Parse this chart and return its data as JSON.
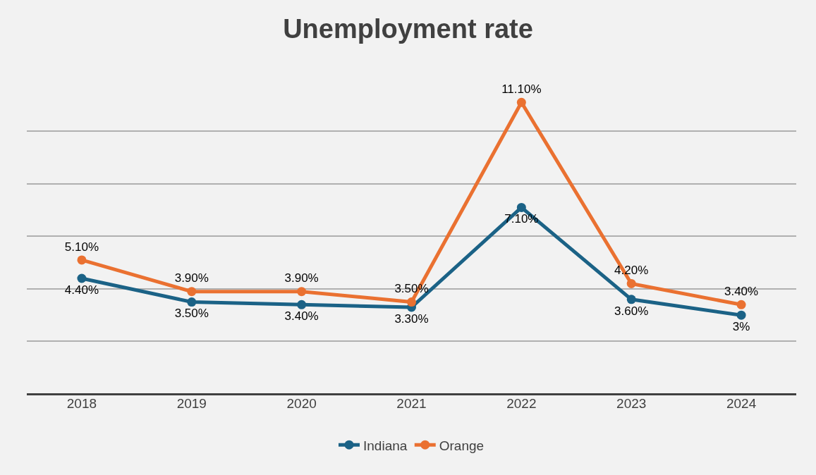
{
  "chart_data": {
    "type": "line",
    "title": "Unemployment rate",
    "categories": [
      "2018",
      "2019",
      "2020",
      "2021",
      "2022",
      "2023",
      "2024"
    ],
    "series": [
      {
        "name": "Indiana",
        "color": "#1b6286",
        "values": [
          4.4,
          3.5,
          3.4,
          3.3,
          7.1,
          3.6,
          3
        ],
        "value_labels": [
          "4.40%",
          "3.50%",
          "3.40%",
          "3.30%",
          "7.10%",
          "3.60%",
          "3%"
        ]
      },
      {
        "name": "Orange",
        "color": "#ea7131",
        "values": [
          5.1,
          3.9,
          3.9,
          3.5,
          11.1,
          4.2,
          3.4
        ],
        "value_labels": [
          "5.10%",
          "3.90%",
          "3.90%",
          "3.50%",
          "11.10%",
          "4.20%",
          "3.40%"
        ]
      }
    ],
    "tick_labels": "x",
    "grid": "y",
    "legend": "bottom",
    "marker": "circle",
    "line_style": "solid"
  }
}
